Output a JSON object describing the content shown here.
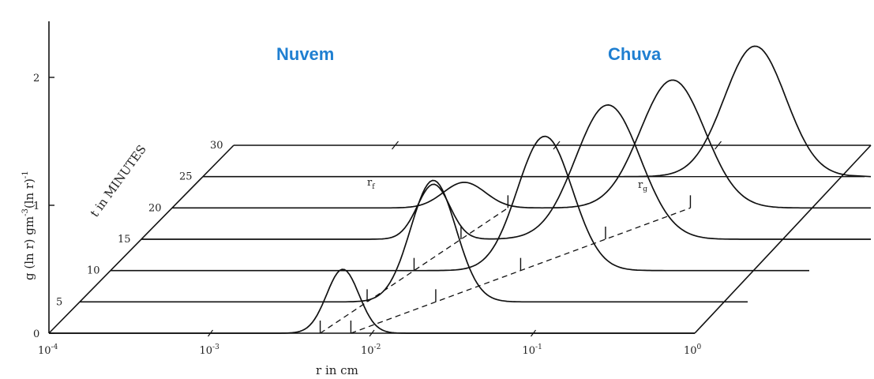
{
  "chart_data": {
    "type": "line",
    "title": "",
    "xlabel": "r in cm",
    "x_scale": "log",
    "xlim": [
      0.0001,
      1
    ],
    "x_ticks": [
      {
        "value": 0.0001,
        "base": "10",
        "exp": "-4"
      },
      {
        "value": 0.001,
        "base": "10",
        "exp": "-3"
      },
      {
        "value": 0.01,
        "base": "10",
        "exp": "-2"
      },
      {
        "value": 0.1,
        "base": "10",
        "exp": "-1"
      },
      {
        "value": 1,
        "base": "10",
        "exp": "0"
      }
    ],
    "ylabel": {
      "main": "g (ln r)  gm",
      "exp1": "-3",
      "mid": "(ln r)",
      "exp2": "-1"
    },
    "ylim": [
      0,
      2.5
    ],
    "y_ticks": [
      {
        "value": 0,
        "label": "0"
      },
      {
        "value": 1,
        "label": "1"
      },
      {
        "value": 2,
        "label": "2"
      }
    ],
    "zlabel": "t  in MINUTES",
    "z_ticks": [
      {
        "value": 5,
        "label": "5"
      },
      {
        "value": 10,
        "label": "10"
      },
      {
        "value": 15,
        "label": "15"
      },
      {
        "value": 20,
        "label": "20"
      },
      {
        "value": 25,
        "label": "25"
      },
      {
        "value": 30,
        "label": "30"
      }
    ],
    "annotations": [
      {
        "text": "Nuvem",
        "color": "#1f7fd1"
      },
      {
        "text": "Chuva",
        "color": "#1f7fd1"
      },
      {
        "text": "r",
        "sub": "f"
      },
      {
        "text": "r",
        "sub": "g"
      }
    ],
    "series": [
      {
        "t": 0,
        "peaks": [
          {
            "log_r": -2.18,
            "height": 0.5,
            "width": 0.1
          }
        ]
      },
      {
        "t": 5,
        "peaks": [
          {
            "log_r": -1.81,
            "height": 0.95,
            "width": 0.14
          }
        ]
      },
      {
        "t": 10,
        "peaks": [
          {
            "log_r": -1.31,
            "height": 1.05,
            "width": 0.17
          }
        ]
      },
      {
        "t": 15,
        "peaks": [
          {
            "log_r": -2.19,
            "height": 0.43,
            "width": 0.1
          },
          {
            "log_r": -1.11,
            "height": 1.05,
            "width": 0.2
          }
        ]
      },
      {
        "t": 20,
        "peaks": [
          {
            "log_r": -2.19,
            "height": 0.2,
            "width": 0.13
          },
          {
            "log_r": -0.9,
            "height": 1.0,
            "width": 0.2
          }
        ]
      },
      {
        "t": 25,
        "peaks": [
          {
            "log_r": -0.58,
            "height": 1.02,
            "width": 0.19
          }
        ]
      }
    ],
    "marker_lines": [
      {
        "label": "r_f",
        "from": {
          "log_r": -2.32,
          "t": 0
        },
        "to": {
          "log_r": -1.92,
          "t": 20
        }
      },
      {
        "label": "r_g",
        "from": {
          "log_r": -2.13,
          "t": 0
        },
        "to": {
          "log_r": -0.79,
          "t": 20
        }
      }
    ],
    "grid": false,
    "legend": "none"
  }
}
